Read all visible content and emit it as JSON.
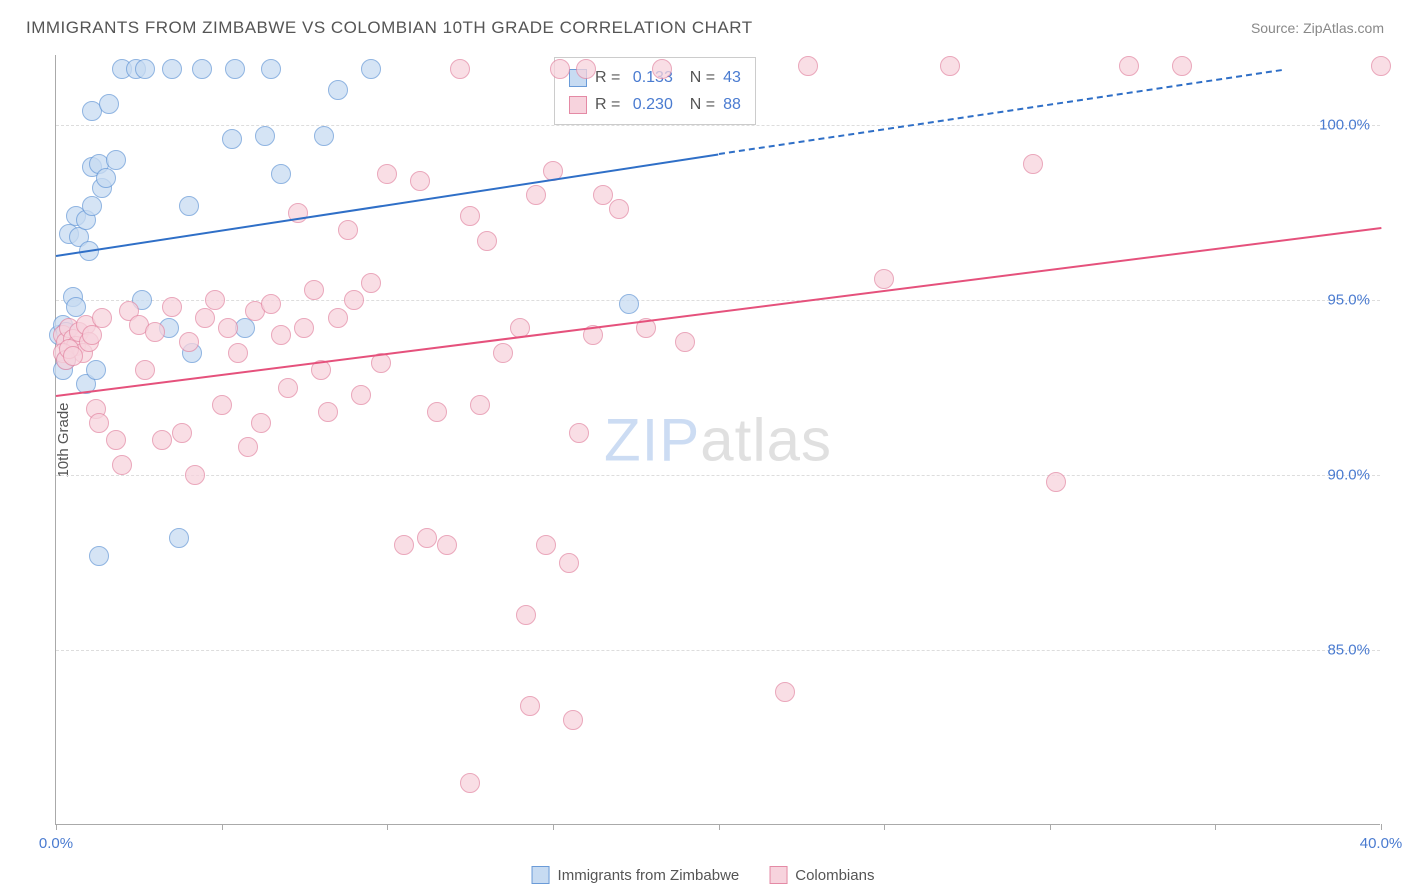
{
  "title": "IMMIGRANTS FROM ZIMBABWE VS COLOMBIAN 10TH GRADE CORRELATION CHART",
  "source": "Source: ZipAtlas.com",
  "watermark": {
    "part1": "ZIP",
    "part2": "atlas"
  },
  "chart": {
    "type": "scatter",
    "background_color": "#ffffff",
    "grid_color": "#dddddd",
    "axis_color": "#aaaaaa",
    "xlim": [
      0,
      40
    ],
    "ylim": [
      80,
      102
    ],
    "xticks": [
      {
        "pos": 0,
        "label": "0.0%"
      },
      {
        "pos": 5
      },
      {
        "pos": 10
      },
      {
        "pos": 15
      },
      {
        "pos": 20
      },
      {
        "pos": 25
      },
      {
        "pos": 30
      },
      {
        "pos": 35
      },
      {
        "pos": 40,
        "label": "40.0%"
      }
    ],
    "yticks": [
      {
        "pos": 85,
        "label": "85.0%"
      },
      {
        "pos": 90,
        "label": "90.0%"
      },
      {
        "pos": 95,
        "label": "95.0%"
      },
      {
        "pos": 100,
        "label": "100.0%"
      }
    ],
    "ylabel": "10th Grade",
    "tick_label_color": "#4a7bd0",
    "axis_label_color": "#555555",
    "label_fontsize": 15,
    "title_fontsize": 17,
    "title_color": "#555555",
    "marker_radius": 10,
    "series": [
      {
        "name": "Immigrants from Zimbabwe",
        "fill": "#c7dbf2",
        "stroke": "#6a9bd8",
        "R": "0.133",
        "N": "43",
        "trend": {
          "x1": 0,
          "y1": 96.3,
          "x2_solid": 20,
          "y2_solid": 99.2,
          "x2": 37,
          "y2": 101.6,
          "color": "#2f6fc7"
        },
        "points": [
          [
            0.1,
            94.0
          ],
          [
            0.2,
            94.3
          ],
          [
            0.3,
            94.1
          ],
          [
            0.3,
            93.3
          ],
          [
            0.5,
            95.1
          ],
          [
            0.6,
            94.8
          ],
          [
            0.4,
            96.9
          ],
          [
            0.7,
            96.8
          ],
          [
            0.6,
            97.4
          ],
          [
            0.9,
            97.3
          ],
          [
            1.1,
            97.7
          ],
          [
            1.0,
            96.4
          ],
          [
            1.1,
            98.8
          ],
          [
            1.3,
            98.9
          ],
          [
            1.4,
            98.2
          ],
          [
            1.5,
            98.5
          ],
          [
            1.8,
            99.0
          ],
          [
            1.1,
            100.4
          ],
          [
            1.6,
            100.6
          ],
          [
            2.0,
            101.6
          ],
          [
            2.4,
            101.6
          ],
          [
            2.7,
            101.6
          ],
          [
            3.5,
            101.6
          ],
          [
            4.4,
            101.6
          ],
          [
            5.4,
            101.6
          ],
          [
            0.9,
            92.6
          ],
          [
            5.3,
            99.6
          ],
          [
            4.0,
            97.7
          ],
          [
            6.3,
            99.7
          ],
          [
            6.8,
            98.6
          ],
          [
            6.5,
            101.6
          ],
          [
            8.1,
            99.7
          ],
          [
            8.5,
            101.0
          ],
          [
            9.5,
            101.6
          ],
          [
            2.6,
            95.0
          ],
          [
            3.4,
            94.2
          ],
          [
            4.1,
            93.5
          ],
          [
            3.7,
            88.2
          ],
          [
            1.3,
            87.7
          ],
          [
            5.7,
            94.2
          ],
          [
            1.2,
            93.0
          ],
          [
            17.3,
            94.9
          ],
          [
            0.2,
            93.0
          ]
        ]
      },
      {
        "name": "Colombians",
        "fill": "#f7d3dd",
        "stroke": "#e48aa5",
        "R": "0.230",
        "N": "88",
        "trend": {
          "x1": 0,
          "y1": 92.3,
          "x2_solid": 40,
          "y2_solid": 97.1,
          "x2": 40,
          "y2": 97.1,
          "color": "#e5517c"
        },
        "points": [
          [
            0.2,
            94.0
          ],
          [
            0.3,
            93.8
          ],
          [
            0.4,
            94.2
          ],
          [
            0.5,
            93.9
          ],
          [
            0.6,
            93.7
          ],
          [
            0.7,
            94.1
          ],
          [
            0.8,
            93.5
          ],
          [
            0.9,
            94.3
          ],
          [
            1.0,
            93.8
          ],
          [
            1.1,
            94.0
          ],
          [
            1.2,
            91.9
          ],
          [
            1.3,
            91.5
          ],
          [
            1.4,
            94.5
          ],
          [
            1.8,
            91.0
          ],
          [
            2.0,
            90.3
          ],
          [
            2.2,
            94.7
          ],
          [
            2.5,
            94.3
          ],
          [
            2.7,
            93.0
          ],
          [
            3.0,
            94.1
          ],
          [
            3.2,
            91.0
          ],
          [
            3.5,
            94.8
          ],
          [
            3.8,
            91.2
          ],
          [
            4.0,
            93.8
          ],
          [
            4.2,
            90.0
          ],
          [
            4.5,
            94.5
          ],
          [
            4.8,
            95.0
          ],
          [
            5.0,
            92.0
          ],
          [
            5.2,
            94.2
          ],
          [
            5.5,
            93.5
          ],
          [
            5.8,
            90.8
          ],
          [
            6.0,
            94.7
          ],
          [
            6.2,
            91.5
          ],
          [
            6.5,
            94.9
          ],
          [
            6.8,
            94.0
          ],
          [
            7.0,
            92.5
          ],
          [
            7.3,
            97.5
          ],
          [
            7.5,
            94.2
          ],
          [
            7.8,
            95.3
          ],
          [
            8.0,
            93.0
          ],
          [
            8.2,
            91.8
          ],
          [
            8.5,
            94.5
          ],
          [
            8.8,
            97.0
          ],
          [
            9.0,
            95.0
          ],
          [
            9.2,
            92.3
          ],
          [
            9.5,
            95.5
          ],
          [
            9.8,
            93.2
          ],
          [
            10.0,
            98.6
          ],
          [
            10.5,
            88.0
          ],
          [
            11.0,
            98.4
          ],
          [
            11.2,
            88.2
          ],
          [
            11.5,
            91.8
          ],
          [
            11.8,
            88.0
          ],
          [
            12.2,
            101.6
          ],
          [
            12.5,
            97.4
          ],
          [
            12.8,
            92.0
          ],
          [
            13.0,
            96.7
          ],
          [
            13.5,
            93.5
          ],
          [
            14.0,
            94.2
          ],
          [
            14.2,
            86.0
          ],
          [
            14.5,
            98.0
          ],
          [
            14.8,
            88.0
          ],
          [
            15.0,
            98.7
          ],
          [
            15.2,
            101.6
          ],
          [
            15.5,
            87.5
          ],
          [
            15.8,
            91.2
          ],
          [
            16.0,
            101.6
          ],
          [
            16.2,
            94.0
          ],
          [
            16.5,
            98.0
          ],
          [
            17.0,
            97.6
          ],
          [
            17.8,
            94.2
          ],
          [
            18.3,
            101.6
          ],
          [
            19.0,
            93.8
          ],
          [
            12.5,
            81.2
          ],
          [
            14.3,
            83.4
          ],
          [
            15.6,
            83.0
          ],
          [
            22.0,
            83.8
          ],
          [
            22.7,
            101.7
          ],
          [
            25.0,
            95.6
          ],
          [
            27.0,
            101.7
          ],
          [
            29.5,
            98.9
          ],
          [
            30.2,
            89.8
          ],
          [
            32.4,
            101.7
          ],
          [
            34.0,
            101.7
          ],
          [
            40.0,
            101.7
          ],
          [
            0.2,
            93.5
          ],
          [
            0.3,
            93.3
          ],
          [
            0.4,
            93.6
          ],
          [
            0.5,
            93.4
          ]
        ]
      }
    ]
  },
  "bottom_legend": [
    {
      "label": "Immigrants from Zimbabwe",
      "fill": "#c7dbf2",
      "stroke": "#6a9bd8"
    },
    {
      "label": "Colombians",
      "fill": "#f7d3dd",
      "stroke": "#e48aa5"
    }
  ]
}
